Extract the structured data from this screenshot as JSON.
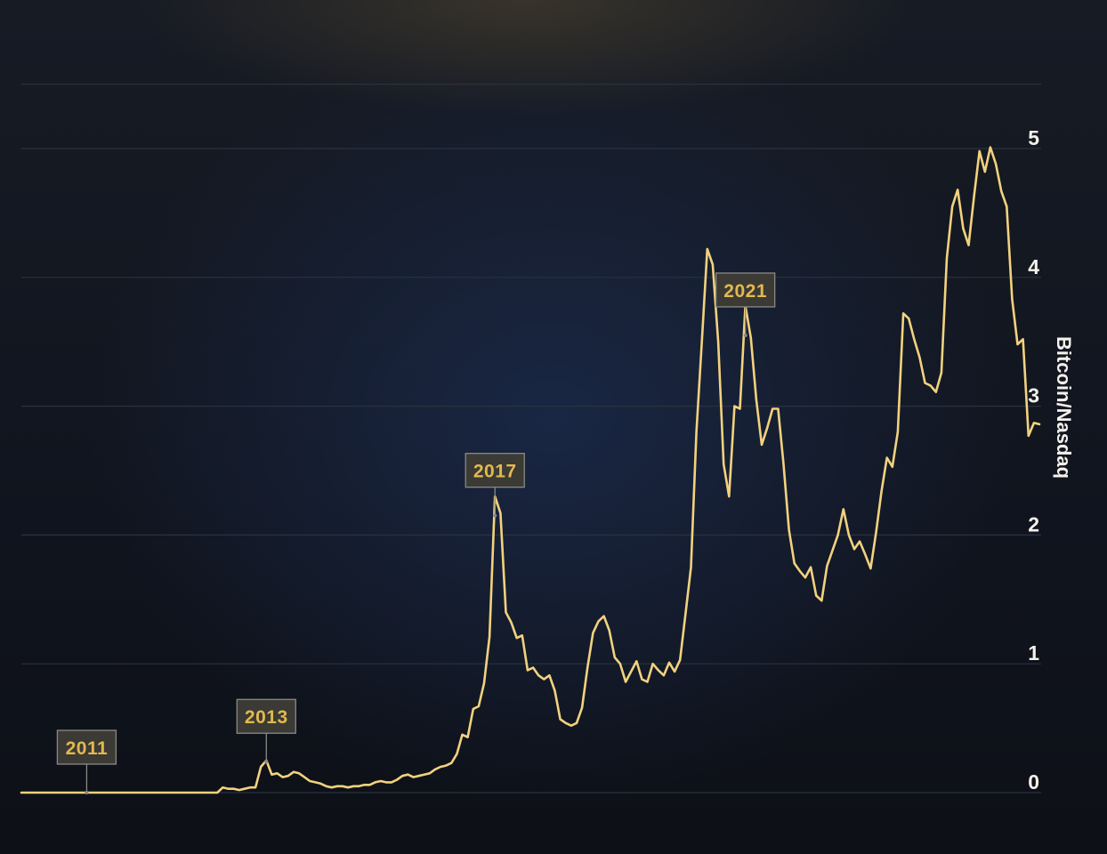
{
  "chart_data": {
    "type": "line",
    "ylabel": "Bitcoin/Nasdaq",
    "ylim": [
      0,
      5.5
    ],
    "yticks": [
      0,
      1,
      2,
      3,
      4,
      5
    ],
    "grid": true,
    "y_axis_side": "right",
    "colors": {
      "line": "#f2d27e",
      "annotation_text": "#e2b94e",
      "tick_text": "#f4f1ea"
    },
    "series": [
      {
        "values": [
          0.0,
          0.0,
          0.0,
          0.0,
          0.0,
          0.0,
          0.0,
          0.0,
          0.0,
          0.0,
          0.0,
          0.0,
          0.0,
          0.0,
          0.0,
          0.0,
          0.0,
          0.0,
          0.0,
          0.0,
          0.0,
          0.0,
          0.0,
          0.0,
          0.0,
          0.0,
          0.0,
          0.0,
          0.0,
          0.0,
          0.0,
          0.0,
          0.0,
          0.0,
          0.0,
          0.0,
          0.0,
          0.04,
          0.03,
          0.03,
          0.02,
          0.03,
          0.04,
          0.04,
          0.2,
          0.25,
          0.14,
          0.15,
          0.12,
          0.13,
          0.16,
          0.15,
          0.12,
          0.09,
          0.08,
          0.07,
          0.05,
          0.04,
          0.05,
          0.05,
          0.04,
          0.05,
          0.05,
          0.06,
          0.06,
          0.08,
          0.09,
          0.08,
          0.08,
          0.1,
          0.13,
          0.14,
          0.12,
          0.13,
          0.14,
          0.15,
          0.18,
          0.2,
          0.21,
          0.23,
          0.3,
          0.45,
          0.43,
          0.65,
          0.67,
          0.85,
          1.21,
          2.3,
          2.17,
          1.4,
          1.32,
          1.2,
          1.22,
          0.95,
          0.97,
          0.91,
          0.88,
          0.91,
          0.79,
          0.57,
          0.54,
          0.52,
          0.54,
          0.66,
          0.97,
          1.24,
          1.33,
          1.37,
          1.26,
          1.05,
          1.0,
          0.86,
          0.94,
          1.02,
          0.88,
          0.86,
          1.0,
          0.95,
          0.91,
          1.01,
          0.94,
          1.03,
          1.39,
          1.75,
          2.8,
          3.5,
          4.22,
          4.1,
          3.5,
          2.55,
          2.3,
          3.0,
          2.98,
          3.78,
          3.53,
          3.05,
          2.7,
          2.83,
          2.98,
          2.98,
          2.55,
          2.04,
          1.78,
          1.72,
          1.67,
          1.75,
          1.53,
          1.49,
          1.76,
          1.88,
          2.0,
          2.2,
          2.0,
          1.89,
          1.95,
          1.85,
          1.74,
          2.02,
          2.34,
          2.6,
          2.53,
          2.8,
          3.72,
          3.68,
          3.52,
          3.38,
          3.18,
          3.16,
          3.11,
          3.26,
          4.15,
          4.55,
          4.68,
          4.38,
          4.25,
          4.63,
          4.98,
          4.82,
          5.01,
          4.88,
          4.67,
          4.55,
          3.83,
          3.48,
          3.52,
          2.77,
          2.87,
          2.86
        ]
      }
    ],
    "annotations": [
      {
        "label": "2011",
        "x": 12,
        "y": 0.0
      },
      {
        "label": "2013",
        "x": 45,
        "y": 0.24
      },
      {
        "label": "2017",
        "x": 87,
        "y": 2.15
      },
      {
        "label": "2021",
        "x": 133,
        "y": 3.55
      }
    ]
  }
}
